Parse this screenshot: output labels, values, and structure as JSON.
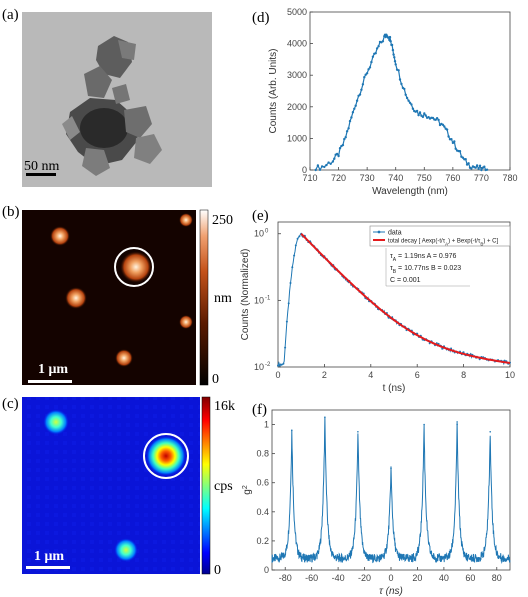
{
  "panels": {
    "a": {
      "label": "(a)",
      "scale_text": "50 nm"
    },
    "b": {
      "label": "(b)",
      "scale_text": "1 μm",
      "cbar_max": "250",
      "cbar_min": "0",
      "cbar_unit": "nm"
    },
    "c": {
      "label": "(c)",
      "scale_text": "1 μm",
      "cbar_max": "16k",
      "cbar_min": "0",
      "cbar_unit": "cps"
    },
    "d": {
      "label": "(d)"
    },
    "e": {
      "label": "(e)"
    },
    "f": {
      "label": "(f)"
    }
  },
  "chart_data": [
    {
      "id": "d",
      "type": "line",
      "xlabel": "Wavelength (nm)",
      "ylabel": "Counts (Arb. Units)",
      "xlim": [
        710,
        780
      ],
      "ylim": [
        0,
        5000
      ],
      "xticks": [
        "710",
        "720",
        "730",
        "740",
        "750",
        "760",
        "770",
        "780"
      ],
      "yticks": [
        "0",
        "1000",
        "2000",
        "3000",
        "4000",
        "5000"
      ],
      "series": [
        {
          "color": "#1f77b4",
          "x": [
            712,
            715,
            718,
            720,
            722,
            724,
            726,
            728,
            730,
            732,
            734,
            736,
            737,
            738,
            739,
            740,
            742,
            744,
            746,
            748,
            750,
            752,
            754,
            756,
            758,
            760,
            762,
            764,
            766,
            768,
            770,
            772
          ],
          "values": [
            50,
            120,
            300,
            500,
            900,
            1500,
            2100,
            2600,
            3100,
            3500,
            3900,
            4200,
            4300,
            4150,
            3800,
            3400,
            2800,
            2300,
            2000,
            1800,
            1750,
            1700,
            1600,
            1450,
            1200,
            900,
            600,
            300,
            150,
            80,
            30,
            10
          ]
        }
      ]
    },
    {
      "id": "e",
      "type": "line",
      "xlabel": "t (ns)",
      "ylabel": "Counts (Normalized)",
      "xlim": [
        0,
        10
      ],
      "ylim": [
        0.01,
        1.5
      ],
      "yscale": "log",
      "xticks": [
        "0",
        "2",
        "4",
        "6",
        "8",
        "10"
      ],
      "yticks": [
        "10",
        "10",
        "10"
      ],
      "ytick_exps": [
        "-2",
        "-1",
        "0"
      ],
      "legend": {
        "position": "top-right",
        "entries": [
          "data",
          "total decay [ Aexp(-t/τ",
          "A",
          ") + Bexp(-t/τ",
          "B",
          ") + C]"
        ]
      },
      "annotations": {
        "tauA": "τ",
        "tauA_sub": "A",
        "tauA_val": " = 1.19ns  A = 0.976",
        "tauB": "τ",
        "tauB_sub": "B",
        "tauB_val": " = 10.77ns  B = 0.023",
        "C": "C = 0.001"
      },
      "fit": {
        "A": 0.976,
        "tauA": 1.19,
        "B": 0.023,
        "tauB": 10.77,
        "C": 0.001,
        "t0": 1.0,
        "rise": 0.3
      },
      "series": [
        {
          "name": "data",
          "color": "#1f77b4"
        },
        {
          "name": "total decay",
          "color": "#e31a1c"
        }
      ]
    },
    {
      "id": "f",
      "type": "line",
      "xlabel": "τ (ns)",
      "ylabel": "g",
      "ylabel_sup": "2",
      "xlim": [
        -90,
        90
      ],
      "ylim": [
        0,
        1.1
      ],
      "xticks": [
        "-80",
        "-60",
        "-40",
        "-20",
        "0",
        "20",
        "40",
        "60",
        "80"
      ],
      "yticks": [
        "0",
        "0.2",
        "0.4",
        "0.6",
        "0.8",
        "1"
      ],
      "peaks": {
        "positions": [
          -75,
          -50,
          -25,
          0,
          25,
          50,
          75
        ],
        "heights": [
          0.96,
          1.05,
          0.95,
          0.7,
          1.0,
          1.0,
          0.95
        ],
        "width": 1.6,
        "baseline": 0.08
      },
      "series": [
        {
          "color": "#1f77b4"
        }
      ]
    }
  ]
}
